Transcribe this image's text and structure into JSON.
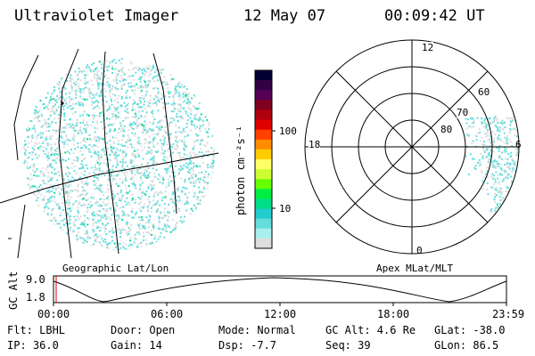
{
  "header": {
    "title": "Ultraviolet Imager",
    "date": "12 May 07",
    "time": "00:09:42 UT"
  },
  "colorbar": {
    "unit_label": "photon cm⁻²s⁻¹",
    "tick_labels": [
      "100",
      "10"
    ],
    "colors": [
      "#000033",
      "#330044",
      "#550055",
      "#800020",
      "#b00010",
      "#e00000",
      "#ff4000",
      "#ff8c00",
      "#ffcc00",
      "#ffff66",
      "#ccff33",
      "#66ff00",
      "#00ee44",
      "#00dd88",
      "#22cccc",
      "#66dddd",
      "#aaeeee",
      "#dddddd"
    ]
  },
  "map_left": {
    "caption": "Geographic Lat/Lon"
  },
  "map_right": {
    "caption": "Apex MLat/MLT",
    "mlt_labels": [
      "12",
      "18",
      "6",
      "0"
    ],
    "mlat_labels": [
      "60",
      "70",
      "80"
    ]
  },
  "gc_alt_strip": {
    "axis_label": "GC Alt",
    "y_ticks": [
      "9.0",
      "1.8"
    ],
    "x_ticks": [
      "00:00",
      "06:00",
      "12:00",
      "18:00",
      "23:59"
    ]
  },
  "status": {
    "filter": "Flt: LBHL",
    "ip": "IP: 36.0",
    "door": "Door: Open",
    "gain": "Gain: 14",
    "mode": "Mode: Normal",
    "dsp": "Dsp:   -7.7",
    "gc_alt": "GC Alt: 4.6 Re",
    "seq": "Seq: 39",
    "glat": "GLat: -38.0",
    "glon": "GLon:  86.5"
  },
  "palette": {
    "speckle_cyan": "#66dddd",
    "speckle_light": "#dddddd",
    "speckle_green": "#00dd88"
  }
}
